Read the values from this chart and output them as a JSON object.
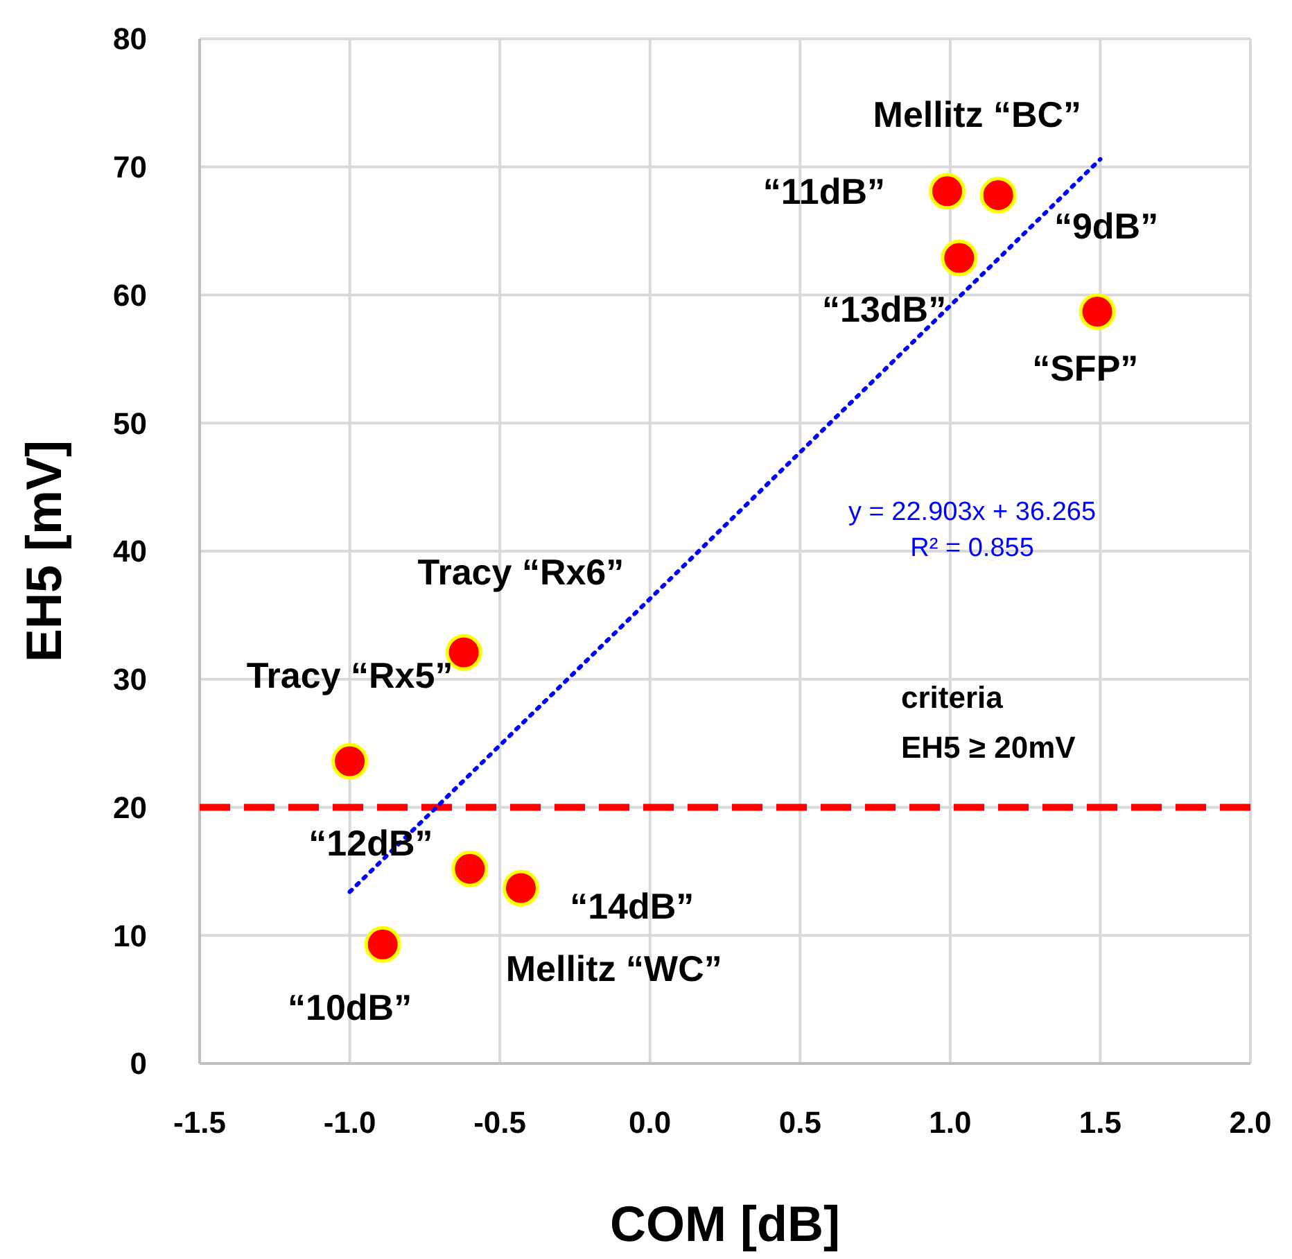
{
  "chart_data": {
    "type": "scatter",
    "xlabel": "COM [dB]",
    "ylabel": "EH5 [mV]",
    "xlim": [
      -1.5,
      2.0
    ],
    "xticks": [
      {
        "value": -1.5,
        "label": "-1.5"
      },
      {
        "value": -1.0,
        "label": "-1.0"
      },
      {
        "value": -0.5,
        "label": "-0.5"
      },
      {
        "value": 0,
        "label": "0.0"
      },
      {
        "value": 0.5,
        "label": "0.5"
      },
      {
        "value": 1.0,
        "label": "1.0"
      },
      {
        "value": 1.5,
        "label": "1.5"
      },
      {
        "value": 2.0,
        "label": "2.0"
      }
    ],
    "ylim": [
      0,
      80
    ],
    "yticks": [
      0,
      10,
      20,
      30,
      40,
      50,
      60,
      70,
      80
    ],
    "grid": true,
    "series": [
      {
        "color": "#ff0000",
        "marker": "circle",
        "x": [
          -1.0,
          -0.62,
          -0.6,
          -0.43,
          -0.89,
          0.99,
          1.16,
          1.03,
          1.49
        ],
        "values": [
          23.6,
          32.1,
          15.2,
          13.7,
          9.3,
          68.1,
          67.8,
          62.9,
          58.7
        ]
      },
      {
        "type": "line",
        "name": "y = 22.903x + 36.265\nR² = 0.855",
        "color": "#0000ff",
        "line_style": "dotted",
        "marker": "none",
        "x": [
          -1.0,
          1.5
        ],
        "values": [
          13.4,
          70.6
        ]
      }
    ],
    "ref_lines": [
      {
        "axis": "y",
        "value": 20,
        "label": "criteria\nEH5 ≥ 20mV",
        "color": "#ff0000",
        "line_style": "dashed"
      }
    ],
    "annotations": [
      "Mellitz “BC”",
      "“11dB”",
      "“9dB”",
      "“13dB”",
      "“SFP”",
      "Tracy “Rx6”",
      "Tracy “Rx5”",
      "“12dB”",
      "“14dB”",
      "Mellitz “WC”",
      "“10dB”"
    ]
  }
}
